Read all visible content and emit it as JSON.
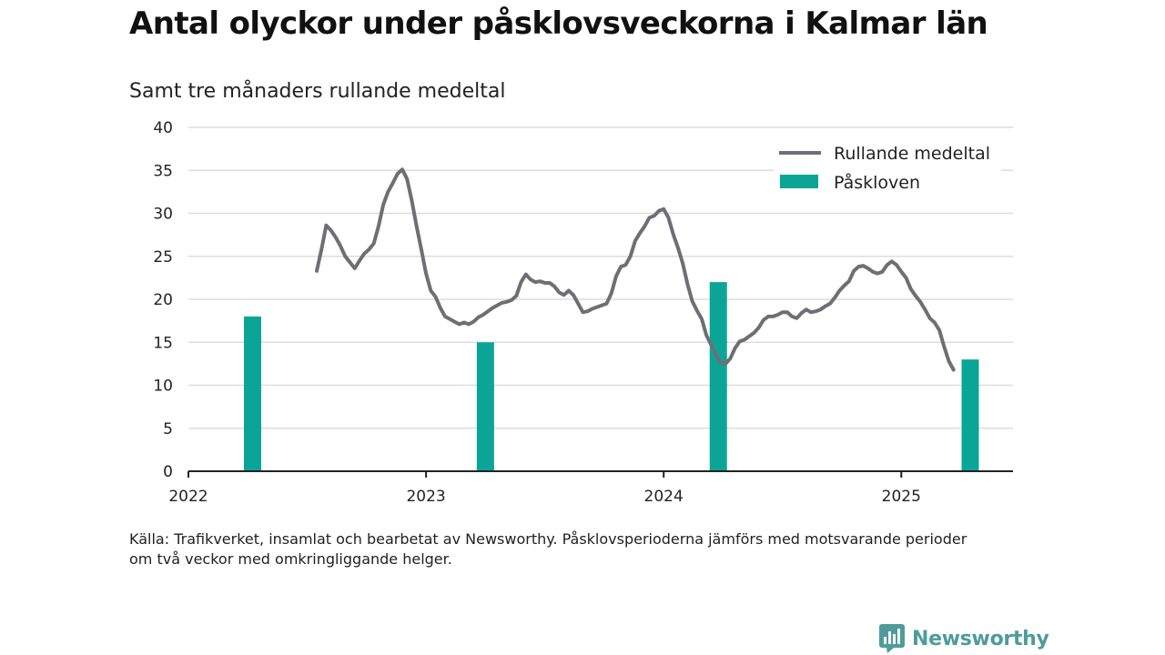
{
  "title": "Antal olyckor under påsklovsveckorna i Kalmar län",
  "subtitle": "Samt tre månaders rullande medeltal",
  "source_line1": "Källa: Trafikverket, insamlat och bearbetat av Newsworthy. Påsklovsperioderna jämförs med motsvarande perioder",
  "source_line2": "om två veckor med omkringliggande helger.",
  "brand": "Newsworthy",
  "colors": {
    "line": "#6e6e76",
    "bars": "#0aa597",
    "grid": "#dddddd",
    "axis": "#222222",
    "brand": "#4f9b9b"
  },
  "chart_data": {
    "type": "bar+line",
    "ylim": [
      0,
      40
    ],
    "y_ticks": [
      0,
      5,
      10,
      15,
      20,
      25,
      30,
      35,
      40
    ],
    "x_range": [
      2022.0,
      2025.47
    ],
    "x_ticks": [
      "2022",
      "2023",
      "2024",
      "2025"
    ],
    "grid": "horizontal",
    "legend_position": "top-right",
    "legend": [
      "Rullande medeltal",
      "Påskloven"
    ],
    "series": [
      {
        "name": "Påskloven",
        "type": "bar",
        "points": [
          {
            "x": 2022.27,
            "y": 18
          },
          {
            "x": 2023.25,
            "y": 15
          },
          {
            "x": 2024.23,
            "y": 22
          },
          {
            "x": 2025.29,
            "y": 13
          }
        ]
      },
      {
        "name": "Rullande medeltal",
        "type": "line",
        "points": [
          {
            "x": 2022.54,
            "y": 23.3
          },
          {
            "x": 2022.56,
            "y": 25.8
          },
          {
            "x": 2022.58,
            "y": 28.6
          },
          {
            "x": 2022.6,
            "y": 28.0
          },
          {
            "x": 2022.62,
            "y": 27.2
          },
          {
            "x": 2022.64,
            "y": 26.2
          },
          {
            "x": 2022.66,
            "y": 25.0
          },
          {
            "x": 2022.68,
            "y": 24.3
          },
          {
            "x": 2022.7,
            "y": 23.6
          },
          {
            "x": 2022.72,
            "y": 24.5
          },
          {
            "x": 2022.74,
            "y": 25.3
          },
          {
            "x": 2022.76,
            "y": 25.8
          },
          {
            "x": 2022.78,
            "y": 26.5
          },
          {
            "x": 2022.8,
            "y": 28.5
          },
          {
            "x": 2022.82,
            "y": 31.0
          },
          {
            "x": 2022.84,
            "y": 32.5
          },
          {
            "x": 2022.86,
            "y": 33.5
          },
          {
            "x": 2022.88,
            "y": 34.6
          },
          {
            "x": 2022.9,
            "y": 35.1
          },
          {
            "x": 2022.92,
            "y": 34.0
          },
          {
            "x": 2022.94,
            "y": 31.5
          },
          {
            "x": 2022.96,
            "y": 28.5
          },
          {
            "x": 2022.98,
            "y": 25.8
          },
          {
            "x": 2023.0,
            "y": 23.0
          },
          {
            "x": 2023.02,
            "y": 21.0
          },
          {
            "x": 2023.04,
            "y": 20.3
          },
          {
            "x": 2023.06,
            "y": 19.0
          },
          {
            "x": 2023.08,
            "y": 18.0
          },
          {
            "x": 2023.1,
            "y": 17.7
          },
          {
            "x": 2023.12,
            "y": 17.4
          },
          {
            "x": 2023.14,
            "y": 17.1
          },
          {
            "x": 2023.16,
            "y": 17.3
          },
          {
            "x": 2023.18,
            "y": 17.1
          },
          {
            "x": 2023.2,
            "y": 17.4
          },
          {
            "x": 2023.22,
            "y": 17.9
          },
          {
            "x": 2023.24,
            "y": 18.2
          },
          {
            "x": 2023.26,
            "y": 18.6
          },
          {
            "x": 2023.28,
            "y": 19.0
          },
          {
            "x": 2023.3,
            "y": 19.3
          },
          {
            "x": 2023.32,
            "y": 19.6
          },
          {
            "x": 2023.34,
            "y": 19.7
          },
          {
            "x": 2023.36,
            "y": 19.9
          },
          {
            "x": 2023.38,
            "y": 20.4
          },
          {
            "x": 2023.4,
            "y": 22.0
          },
          {
            "x": 2023.42,
            "y": 22.9
          },
          {
            "x": 2023.44,
            "y": 22.3
          },
          {
            "x": 2023.46,
            "y": 22.0
          },
          {
            "x": 2023.48,
            "y": 22.1
          },
          {
            "x": 2023.5,
            "y": 21.9
          },
          {
            "x": 2023.52,
            "y": 21.9
          },
          {
            "x": 2023.54,
            "y": 21.5
          },
          {
            "x": 2023.56,
            "y": 20.8
          },
          {
            "x": 2023.58,
            "y": 20.5
          },
          {
            "x": 2023.6,
            "y": 21.0
          },
          {
            "x": 2023.62,
            "y": 20.5
          },
          {
            "x": 2023.64,
            "y": 19.5
          },
          {
            "x": 2023.66,
            "y": 18.5
          },
          {
            "x": 2023.68,
            "y": 18.6
          },
          {
            "x": 2023.7,
            "y": 18.9
          },
          {
            "x": 2023.72,
            "y": 19.1
          },
          {
            "x": 2023.74,
            "y": 19.3
          },
          {
            "x": 2023.76,
            "y": 19.5
          },
          {
            "x": 2023.78,
            "y": 20.7
          },
          {
            "x": 2023.8,
            "y": 22.7
          },
          {
            "x": 2023.82,
            "y": 23.8
          },
          {
            "x": 2023.84,
            "y": 24.0
          },
          {
            "x": 2023.86,
            "y": 25.0
          },
          {
            "x": 2023.88,
            "y": 26.8
          },
          {
            "x": 2023.9,
            "y": 27.7
          },
          {
            "x": 2023.92,
            "y": 28.5
          },
          {
            "x": 2023.94,
            "y": 29.5
          },
          {
            "x": 2023.96,
            "y": 29.7
          },
          {
            "x": 2023.98,
            "y": 30.3
          },
          {
            "x": 2024.0,
            "y": 30.5
          },
          {
            "x": 2024.02,
            "y": 29.5
          },
          {
            "x": 2024.04,
            "y": 27.6
          },
          {
            "x": 2024.06,
            "y": 26.0
          },
          {
            "x": 2024.08,
            "y": 24.2
          },
          {
            "x": 2024.1,
            "y": 21.8
          },
          {
            "x": 2024.12,
            "y": 19.8
          },
          {
            "x": 2024.14,
            "y": 18.7
          },
          {
            "x": 2024.16,
            "y": 17.7
          },
          {
            "x": 2024.18,
            "y": 15.8
          },
          {
            "x": 2024.2,
            "y": 14.7
          },
          {
            "x": 2024.22,
            "y": 13.6
          },
          {
            "x": 2024.24,
            "y": 12.6
          },
          {
            "x": 2024.26,
            "y": 12.5
          },
          {
            "x": 2024.28,
            "y": 13.1
          },
          {
            "x": 2024.3,
            "y": 14.3
          },
          {
            "x": 2024.32,
            "y": 15.1
          },
          {
            "x": 2024.34,
            "y": 15.3
          },
          {
            "x": 2024.36,
            "y": 15.7
          },
          {
            "x": 2024.38,
            "y": 16.1
          },
          {
            "x": 2024.4,
            "y": 16.7
          },
          {
            "x": 2024.42,
            "y": 17.6
          },
          {
            "x": 2024.44,
            "y": 18.0
          },
          {
            "x": 2024.46,
            "y": 18.0
          },
          {
            "x": 2024.48,
            "y": 18.2
          },
          {
            "x": 2024.5,
            "y": 18.5
          },
          {
            "x": 2024.52,
            "y": 18.5
          },
          {
            "x": 2024.54,
            "y": 18.0
          },
          {
            "x": 2024.56,
            "y": 17.8
          },
          {
            "x": 2024.58,
            "y": 18.4
          },
          {
            "x": 2024.6,
            "y": 18.8
          },
          {
            "x": 2024.62,
            "y": 18.5
          },
          {
            "x": 2024.64,
            "y": 18.6
          },
          {
            "x": 2024.66,
            "y": 18.8
          },
          {
            "x": 2024.68,
            "y": 19.2
          },
          {
            "x": 2024.7,
            "y": 19.5
          },
          {
            "x": 2024.72,
            "y": 20.2
          },
          {
            "x": 2024.74,
            "y": 21.0
          },
          {
            "x": 2024.76,
            "y": 21.6
          },
          {
            "x": 2024.78,
            "y": 22.1
          },
          {
            "x": 2024.8,
            "y": 23.3
          },
          {
            "x": 2024.82,
            "y": 23.8
          },
          {
            "x": 2024.84,
            "y": 23.9
          },
          {
            "x": 2024.86,
            "y": 23.6
          },
          {
            "x": 2024.88,
            "y": 23.2
          },
          {
            "x": 2024.9,
            "y": 23.0
          },
          {
            "x": 2024.92,
            "y": 23.2
          },
          {
            "x": 2024.94,
            "y": 24.0
          },
          {
            "x": 2024.96,
            "y": 24.4
          },
          {
            "x": 2024.98,
            "y": 24.0
          },
          {
            "x": 2025.0,
            "y": 23.2
          },
          {
            "x": 2025.02,
            "y": 22.5
          },
          {
            "x": 2025.04,
            "y": 21.2
          },
          {
            "x": 2025.06,
            "y": 20.4
          },
          {
            "x": 2025.08,
            "y": 19.7
          },
          {
            "x": 2025.1,
            "y": 18.8
          },
          {
            "x": 2025.12,
            "y": 17.8
          },
          {
            "x": 2025.14,
            "y": 17.3
          },
          {
            "x": 2025.16,
            "y": 16.4
          },
          {
            "x": 2025.18,
            "y": 14.5
          },
          {
            "x": 2025.2,
            "y": 12.8
          },
          {
            "x": 2025.22,
            "y": 11.8
          }
        ]
      }
    ]
  }
}
